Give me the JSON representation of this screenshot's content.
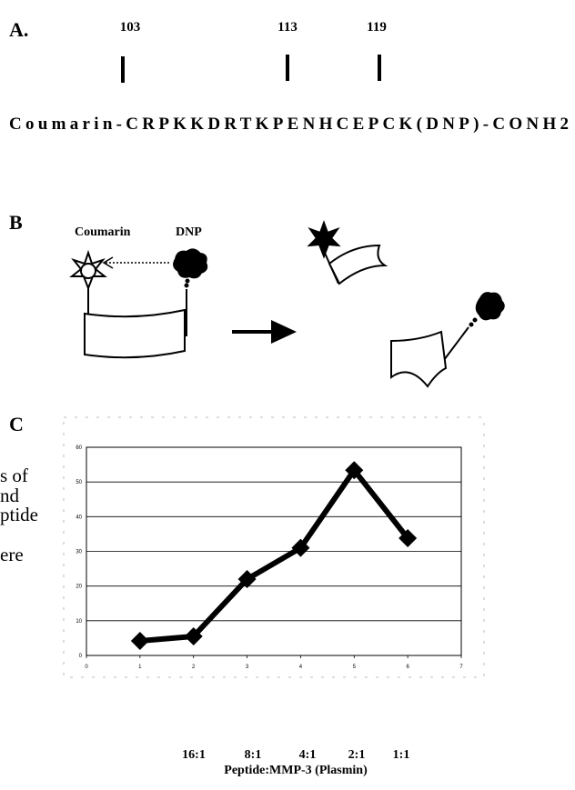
{
  "panel_a": {
    "label": "A.",
    "positions": [
      "103",
      "113",
      "119"
    ],
    "sequence": "Coumarin-CRPKKDRTKPENHCEPCK(DNP)-CONH2"
  },
  "panel_b": {
    "label": "B",
    "donor": "Coumarin",
    "quencher": "DNP"
  },
  "panel_c": {
    "label": "C",
    "ratio_labels": [
      "16:1",
      "8:1",
      "4:1",
      "2:1",
      "1:1"
    ],
    "x_axis_label": "Peptide:MMP-3 (Plasmin)"
  },
  "background_text": [
    "s of",
    "nd",
    "ptide",
    "ere"
  ],
  "chart_data": {
    "type": "line",
    "x": [
      1,
      2,
      3,
      4,
      5,
      6
    ],
    "series": [
      {
        "color": "#000000",
        "values": [
          4.2,
          5.5,
          22,
          31,
          53.4,
          33.8
        ]
      }
    ],
    "xlim": [
      0,
      7
    ],
    "xticks": [
      0,
      1,
      2,
      3,
      4,
      5,
      6,
      7
    ],
    "ylim": [
      0,
      60
    ],
    "yticks": [
      0,
      10,
      20,
      30,
      40,
      50,
      60
    ],
    "grid": true,
    "marker": "diamond"
  }
}
